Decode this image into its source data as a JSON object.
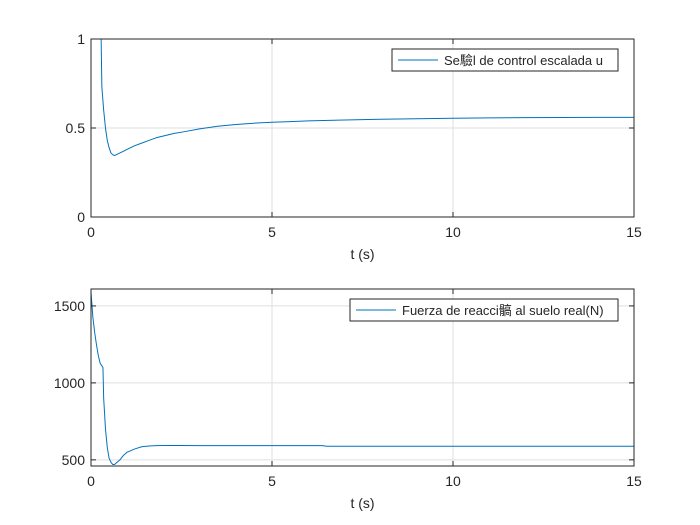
{
  "chart_data": [
    {
      "type": "line",
      "xlabel": "t (s)",
      "ylabel": "",
      "xlim": [
        0,
        15
      ],
      "ylim": [
        0,
        1
      ],
      "xticks": [
        0,
        5,
        10,
        15
      ],
      "xtick_labels": [
        "0",
        "5",
        "10",
        "15"
      ],
      "yticks": [
        0,
        0.5,
        1
      ],
      "ytick_labels": [
        "0",
        "0.5",
        "1"
      ],
      "grid": true,
      "legend_position": "top-right",
      "series": [
        {
          "name": "Se驗l de control escalada u",
          "color": "#0072BD",
          "x": [
            0,
            0.28,
            0.3,
            0.35,
            0.4,
            0.45,
            0.5,
            0.55,
            0.6,
            0.65,
            0.7,
            0.8,
            0.9,
            1.0,
            1.2,
            1.4,
            1.6,
            1.8,
            2.0,
            2.3,
            2.6,
            3.0,
            3.5,
            4.0,
            4.5,
            5.0,
            5.5,
            6.0,
            7.0,
            8.0,
            9.0,
            10.0,
            11.0,
            12.0,
            13.0,
            14.0,
            15.0
          ],
          "y": [
            1,
            1,
            0.73,
            0.6,
            0.5,
            0.43,
            0.39,
            0.36,
            0.35,
            0.345,
            0.35,
            0.36,
            0.37,
            0.38,
            0.4,
            0.415,
            0.43,
            0.445,
            0.455,
            0.47,
            0.48,
            0.495,
            0.51,
            0.52,
            0.527,
            0.532,
            0.536,
            0.54,
            0.545,
            0.549,
            0.552,
            0.555,
            0.557,
            0.558,
            0.559,
            0.56,
            0.56
          ]
        }
      ]
    },
    {
      "type": "line",
      "xlabel": "t (s)",
      "ylabel": "",
      "xlim": [
        0,
        15
      ],
      "ylim": [
        460,
        1610
      ],
      "xticks": [
        0,
        5,
        10,
        15
      ],
      "xtick_labels": [
        "0",
        "5",
        "10",
        "15"
      ],
      "yticks": [
        500,
        1000,
        1500
      ],
      "ytick_labels": [
        "500",
        "1000",
        "1500"
      ],
      "grid": true,
      "legend_position": "top-right",
      "series": [
        {
          "name": "Fuerza de reacci髇 al suelo real(N)",
          "color": "#0072BD",
          "x": [
            0,
            0.05,
            0.1,
            0.15,
            0.2,
            0.25,
            0.3,
            0.33,
            0.35,
            0.4,
            0.45,
            0.5,
            0.55,
            0.6,
            0.65,
            0.7,
            0.8,
            0.9,
            1.0,
            1.2,
            1.4,
            1.6,
            1.8,
            2.0,
            2.5,
            3.0,
            4.0,
            5.0,
            6.0,
            6.4,
            6.5,
            7.0,
            8.0,
            10.0,
            12.0,
            15.0
          ],
          "y": [
            1590,
            1430,
            1330,
            1250,
            1180,
            1130,
            1110,
            1100,
            900,
            700,
            580,
            510,
            485,
            470,
            470,
            480,
            500,
            530,
            550,
            570,
            585,
            590,
            592,
            593,
            593,
            592,
            592,
            592,
            592,
            592,
            588,
            588,
            588,
            588,
            588,
            588
          ]
        }
      ]
    }
  ]
}
